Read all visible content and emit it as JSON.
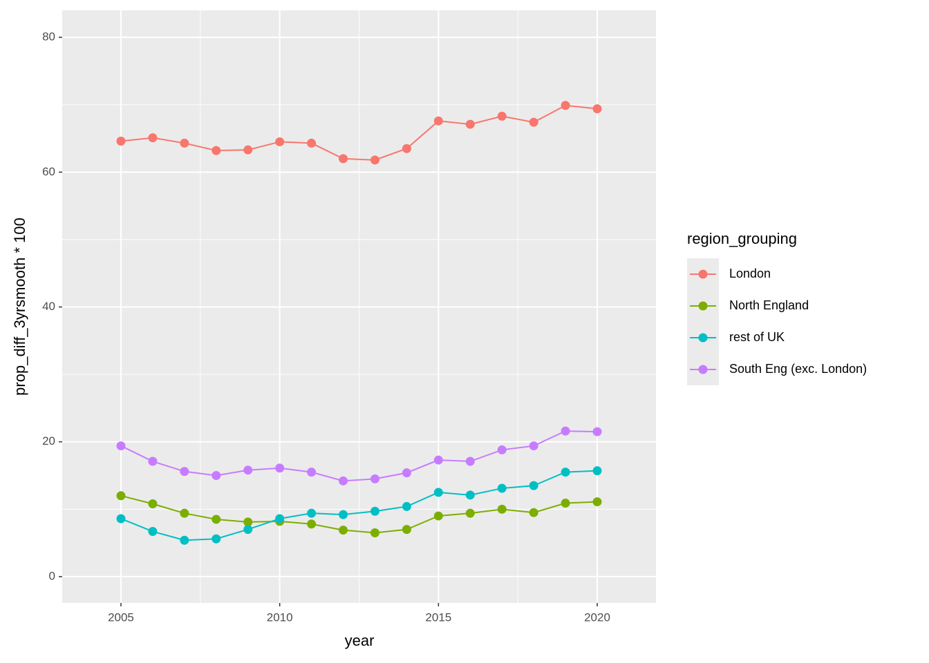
{
  "chart_data": {
    "type": "line",
    "x_label": "year",
    "y_label": "prop_diff_3yrsmooth * 100",
    "legend_title": "region_grouping",
    "legend_position": "right",
    "grid": true,
    "x": [
      2005,
      2006,
      2007,
      2008,
      2009,
      2010,
      2011,
      2012,
      2013,
      2014,
      2015,
      2016,
      2017,
      2018,
      2019,
      2020
    ],
    "xlim": [
      2003.15,
      2021.85
    ],
    "xticks": [
      2005,
      2010,
      2015,
      2020
    ],
    "ylim": [
      -3.9,
      84
    ],
    "yticks": [
      0,
      20,
      40,
      60,
      80
    ],
    "series": [
      {
        "name": "London",
        "color": "#F8766D",
        "values": [
          64.6,
          65.1,
          64.3,
          63.2,
          63.3,
          64.5,
          64.3,
          62.0,
          61.8,
          63.5,
          67.6,
          67.1,
          68.3,
          67.4,
          69.9,
          69.4
        ]
      },
      {
        "name": "North England",
        "color": "#7CAE00",
        "values": [
          12.0,
          10.8,
          9.4,
          8.5,
          8.1,
          8.2,
          7.8,
          6.9,
          6.5,
          7.0,
          9.0,
          9.4,
          10.0,
          9.5,
          10.9,
          11.1
        ]
      },
      {
        "name": "rest of UK",
        "color": "#00BFC4",
        "values": [
          8.6,
          6.7,
          5.4,
          5.6,
          7.0,
          8.6,
          9.4,
          9.2,
          9.7,
          10.4,
          12.5,
          12.1,
          13.1,
          13.5,
          15.5,
          15.7
        ]
      },
      {
        "name": "South Eng (exc. London)",
        "color": "#C77CFF",
        "values": [
          19.4,
          17.1,
          15.6,
          15.0,
          15.8,
          16.1,
          15.5,
          14.2,
          14.5,
          15.4,
          17.3,
          17.1,
          18.8,
          19.4,
          21.6,
          21.5
        ]
      }
    ]
  }
}
